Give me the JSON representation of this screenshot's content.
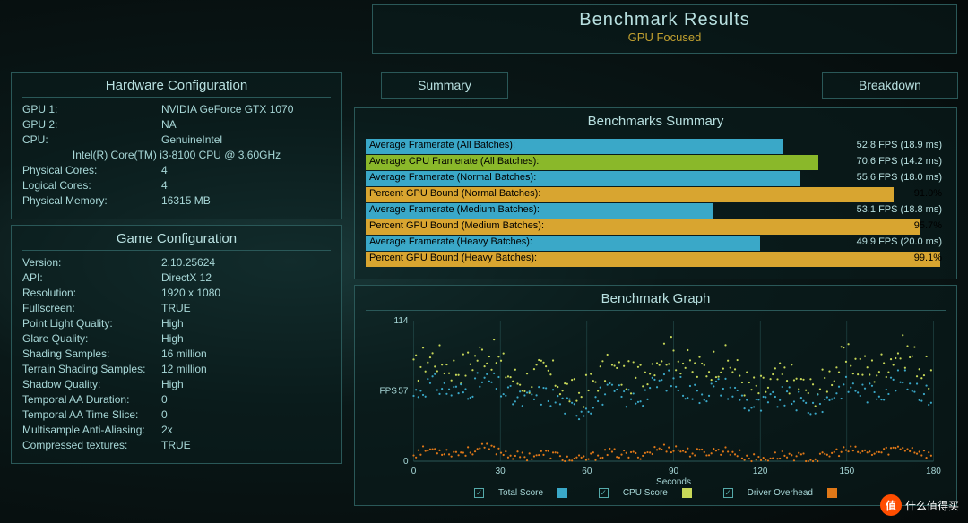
{
  "header": {
    "title": "Benchmark Results",
    "subtitle": "GPU Focused"
  },
  "tabs": {
    "summary": "Summary",
    "breakdown": "Breakdown"
  },
  "hardware": {
    "heading": "Hardware Configuration",
    "gpu1_label": "GPU 1:",
    "gpu1": "NVIDIA GeForce GTX 1070",
    "gpu2_label": "GPU 2:",
    "gpu2": "NA",
    "cpu_label": "CPU:",
    "cpu_vendor": "GenuineIntel",
    "cpu_name": "Intel(R) Core(TM) i3-8100 CPU @ 3.60GHz",
    "phys_label": "Physical Cores:",
    "phys": "4",
    "log_label": "Logical Cores:",
    "log": "4",
    "mem_label": "Physical Memory:",
    "mem": "16315  MB"
  },
  "game": {
    "heading": "Game Configuration",
    "items": [
      {
        "label": "Version:",
        "value": "2.10.25624"
      },
      {
        "label": "API:",
        "value": "DirectX 12"
      },
      {
        "label": "Resolution:",
        "value": "1920 x 1080"
      },
      {
        "label": "Fullscreen:",
        "value": "TRUE"
      },
      {
        "label": "Point Light Quality:",
        "value": "High"
      },
      {
        "label": "Glare Quality:",
        "value": "High"
      },
      {
        "label": "Shading Samples:",
        "value": "16 million"
      },
      {
        "label": "Terrain Shading Samples:",
        "value": "12 million"
      },
      {
        "label": "Shadow Quality:",
        "value": "High"
      },
      {
        "label": "Temporal AA Duration:",
        "value": "0"
      },
      {
        "label": "Temporal AA Time Slice:",
        "value": "0"
      },
      {
        "label": "Multisample Anti-Aliasing:",
        "value": "2x"
      },
      {
        "label": "Compressed textures:",
        "value": "TRUE"
      }
    ]
  },
  "summary": {
    "heading": "Benchmarks Summary",
    "bars": [
      {
        "label": "Average Framerate (All Batches):",
        "value": "52.8 FPS (18.9 ms)",
        "pct": 72,
        "color": "#3aa8c8",
        "vcolor": "#b8e0e0"
      },
      {
        "label": "Average CPU Framerate (All Batches):",
        "value": "70.6 FPS (14.2 ms)",
        "pct": 78,
        "color": "#8ab82a",
        "vcolor": "#b8e0e0"
      },
      {
        "label": "Average Framerate (Normal Batches):",
        "value": "55.6 FPS (18.0 ms)",
        "pct": 75,
        "color": "#3aa8c8",
        "vcolor": "#b8e0e0"
      },
      {
        "label": "Percent GPU Bound (Normal Batches):",
        "value": "91.0%",
        "pct": 91,
        "color": "#d8a530",
        "vcolor": "#000"
      },
      {
        "label": "Average Framerate (Medium Batches):",
        "value": "53.1 FPS (18.8 ms)",
        "pct": 60,
        "color": "#3aa8c8",
        "vcolor": "#b8e0e0"
      },
      {
        "label": "Percent GPU Bound (Medium Batches):",
        "value": "95.7%",
        "pct": 95.7,
        "color": "#d8a530",
        "vcolor": "#000"
      },
      {
        "label": "Average Framerate (Heavy Batches):",
        "value": "49.9 FPS (20.0 ms)",
        "pct": 68,
        "color": "#3aa8c8",
        "vcolor": "#b8e0e0"
      },
      {
        "label": "Percent GPU Bound (Heavy Batches):",
        "value": "99.1%",
        "pct": 99.1,
        "color": "#d8a530",
        "vcolor": "#000"
      }
    ]
  },
  "graph": {
    "heading": "Benchmark Graph",
    "ylabel": "FPS",
    "ymax": 114,
    "ymid": 57,
    "ymin": 0,
    "xlabel": "Seconds",
    "xticks": [
      0,
      30,
      60,
      90,
      120,
      150,
      180
    ],
    "colors": {
      "total": "#3aa8c8",
      "cpu": "#c8d858",
      "driver": "#e07818",
      "grid": "#2a5858",
      "text": "#a8d8d8"
    },
    "legend": {
      "total": "Total Score",
      "cpu": "CPU Score",
      "driver": "Driver Overhead"
    }
  },
  "watermark": {
    "badge": "值",
    "text": "什么值得买"
  }
}
